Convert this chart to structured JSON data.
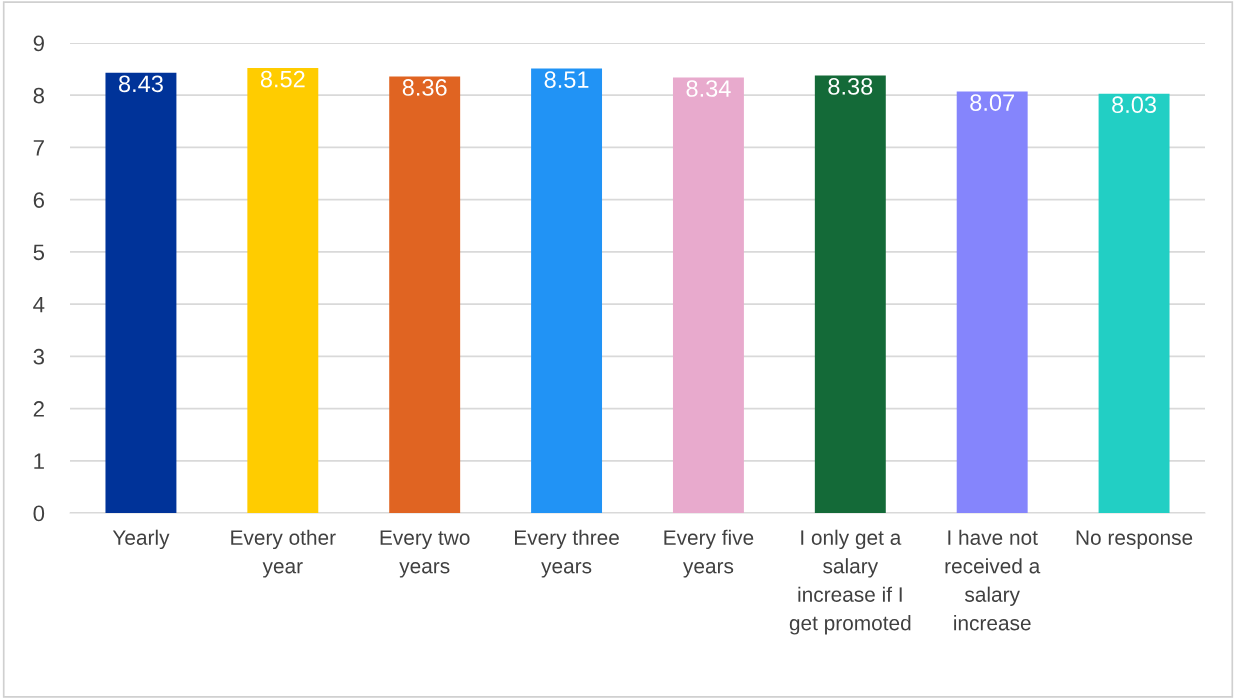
{
  "chart_data": {
    "type": "bar",
    "categories": [
      "Yearly",
      "Every other year",
      "Every two years",
      "Every three years",
      "Every five years",
      "I only get a salary increase if I get promoted",
      "I have not received a salary increase",
      "No response"
    ],
    "values": [
      8.43,
      8.52,
      8.36,
      8.51,
      8.34,
      8.38,
      8.07,
      8.03
    ],
    "colors": [
      "#003399",
      "#ffcc00",
      "#e06422",
      "#2193f5",
      "#e8aacd",
      "#146a38",
      "#8585fc",
      "#22cfc4"
    ],
    "ylim": [
      0,
      9
    ],
    "yticks": [
      0,
      1,
      2,
      3,
      4,
      5,
      6,
      7,
      8,
      9
    ],
    "grid": "y",
    "data_labels": true,
    "legend": false
  }
}
